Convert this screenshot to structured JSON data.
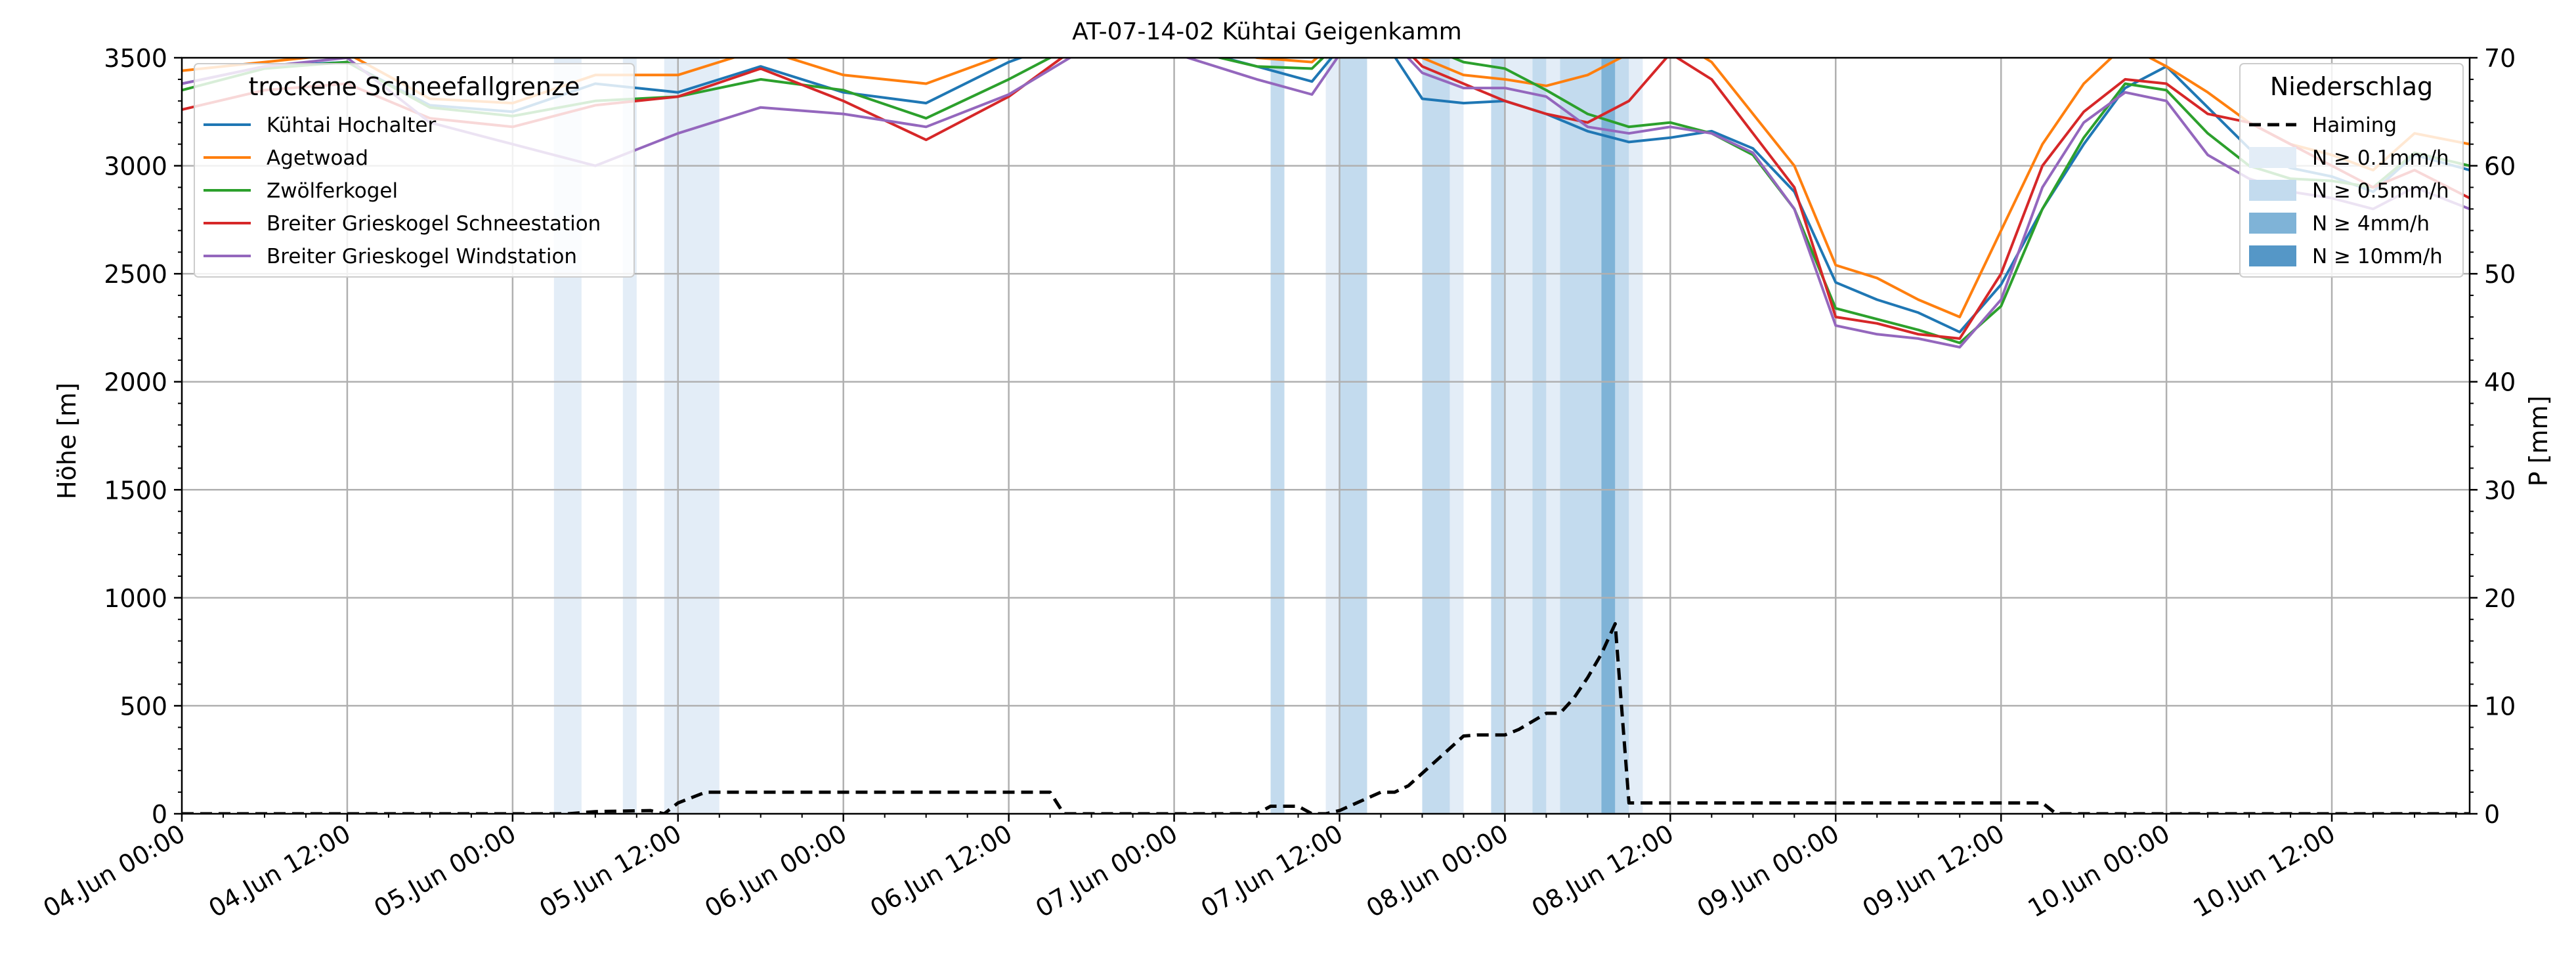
{
  "chart_data": {
    "type": "line",
    "title": "AT-07-14-02 Kühtai Geigenkamm",
    "ylabel": "Höhe [m]",
    "y2label": "P [mm]",
    "xlim": [
      "04.Jun 00:00",
      "10.Jun 22:00"
    ],
    "ylim": [
      0,
      3500
    ],
    "y2lim": [
      0,
      70
    ],
    "grid": true,
    "x_ticks": [
      "04.Jun 00:00",
      "04.Jun 12:00",
      "05.Jun 00:00",
      "05.Jun 12:00",
      "06.Jun 00:00",
      "06.Jun 12:00",
      "07.Jun 00:00",
      "07.Jun 12:00",
      "08.Jun 00:00",
      "08.Jun 12:00",
      "09.Jun 00:00",
      "09.Jun 12:00",
      "10.Jun 00:00",
      "10.Jun 12:00"
    ],
    "y_ticks": [
      0,
      500,
      1000,
      1500,
      2000,
      2500,
      3000,
      3500
    ],
    "y2_ticks": [
      0,
      10,
      20,
      30,
      40,
      50,
      60,
      70
    ],
    "legend_left": {
      "title": "trockene Schneefallgrenze",
      "position": "upper-left",
      "entries": [
        "Kühtai Hochalter",
        "Agetwoad",
        "Zwölferkogel",
        "Breiter Grieskogel Schneestation",
        "Breiter Grieskogel Windstation"
      ]
    },
    "legend_right": {
      "title": "Niederschlag",
      "position": "upper-right",
      "entries": [
        "Haiming",
        "N ≥ 0.1mm/h",
        "N ≥ 0.5mm/h",
        "N ≥ 4mm/h",
        "N ≥ 10mm/h"
      ]
    },
    "colors": {
      "series": [
        "#1f77b4",
        "#ff7f0e",
        "#2ca02c",
        "#d62728",
        "#9467bd"
      ],
      "band_light": "#e3edf7",
      "band_medium": "#c3dbee",
      "band_strong": "#7fb3d7",
      "band_strongest": "#5597c7",
      "precip": "#000000",
      "grid": "#b0b0b0"
    },
    "series": [
      {
        "name": "Kühtai Hochalter",
        "x": [
          "04.Jun 00:00",
          "04.Jun 06:00",
          "04.Jun 12:00",
          "04.Jun 18:00",
          "05.Jun 00:00",
          "05.Jun 06:00",
          "05.Jun 12:00",
          "05.Jun 18:00",
          "06.Jun 00:00",
          "06.Jun 06:00",
          "06.Jun 12:00",
          "06.Jun 18:00",
          "07.Jun 00:00",
          "07.Jun 06:00",
          "07.Jun 10:00",
          "07.Jun 14:00",
          "07.Jun 18:00",
          "07.Jun 21:00",
          "08.Jun 00:00",
          "08.Jun 03:00",
          "08.Jun 06:00",
          "08.Jun 09:00",
          "08.Jun 12:00",
          "08.Jun 15:00",
          "08.Jun 18:00",
          "08.Jun 21:00",
          "09.Jun 00:00",
          "09.Jun 03:00",
          "09.Jun 06:00",
          "09.Jun 09:00",
          "09.Jun 12:00",
          "09.Jun 15:00",
          "09.Jun 18:00",
          "09.Jun 21:00",
          "10.Jun 00:00",
          "10.Jun 03:00",
          "10.Jun 06:00",
          "10.Jun 09:00",
          "10.Jun 12:00",
          "10.Jun 15:00",
          "10.Jun 18:00",
          "10.Jun 22:00"
        ],
        "y": [
          3380,
          3460,
          3480,
          3280,
          3250,
          3380,
          3340,
          3460,
          3340,
          3290,
          3480,
          3620,
          3560,
          3460,
          3390,
          3700,
          3310,
          3290,
          3300,
          3240,
          3160,
          3110,
          3130,
          3160,
          3080,
          2880,
          2460,
          2380,
          2320,
          2230,
          2450,
          2800,
          3100,
          3360,
          3460,
          3270,
          3080,
          2990,
          2950,
          2880,
          3050,
          2980
        ]
      },
      {
        "name": "Agetwoad",
        "x": [
          "04.Jun 00:00",
          "04.Jun 06:00",
          "04.Jun 12:00",
          "04.Jun 18:00",
          "05.Jun 00:00",
          "05.Jun 06:00",
          "05.Jun 12:00",
          "05.Jun 18:00",
          "06.Jun 00:00",
          "06.Jun 06:00",
          "06.Jun 12:00",
          "06.Jun 18:00",
          "07.Jun 00:00",
          "07.Jun 06:00",
          "07.Jun 10:00",
          "07.Jun 14:00",
          "07.Jun 18:00",
          "07.Jun 21:00",
          "08.Jun 00:00",
          "08.Jun 03:00",
          "08.Jun 06:00",
          "08.Jun 09:00",
          "08.Jun 12:00",
          "08.Jun 15:00",
          "08.Jun 18:00",
          "08.Jun 21:00",
          "09.Jun 00:00",
          "09.Jun 03:00",
          "09.Jun 06:00",
          "09.Jun 09:00",
          "09.Jun 12:00",
          "09.Jun 15:00",
          "09.Jun 18:00",
          "09.Jun 21:00",
          "10.Jun 00:00",
          "10.Jun 03:00",
          "10.Jun 06:00",
          "10.Jun 09:00",
          "10.Jun 12:00",
          "10.Jun 15:00",
          "10.Jun 18:00",
          "10.Jun 22:00"
        ],
        "y": [
          3440,
          3480,
          3520,
          3310,
          3290,
          3420,
          3420,
          3540,
          3420,
          3380,
          3520,
          3650,
          3600,
          3500,
          3480,
          3700,
          3500,
          3420,
          3400,
          3370,
          3420,
          3520,
          3600,
          3480,
          3240,
          3000,
          2540,
          2480,
          2380,
          2300,
          2700,
          3100,
          3380,
          3560,
          3460,
          3340,
          3200,
          3100,
          3050,
          2980,
          3150,
          3100
        ]
      },
      {
        "name": "Zwölferkogel",
        "x": [
          "04.Jun 00:00",
          "04.Jun 06:00",
          "04.Jun 12:00",
          "04.Jun 18:00",
          "05.Jun 00:00",
          "05.Jun 06:00",
          "05.Jun 12:00",
          "05.Jun 18:00",
          "06.Jun 00:00",
          "06.Jun 06:00",
          "06.Jun 12:00",
          "06.Jun 18:00",
          "07.Jun 00:00",
          "07.Jun 06:00",
          "07.Jun 10:00",
          "07.Jun 14:00",
          "07.Jun 18:00",
          "07.Jun 21:00",
          "08.Jun 00:00",
          "08.Jun 03:00",
          "08.Jun 06:00",
          "08.Jun 09:00",
          "08.Jun 12:00",
          "08.Jun 15:00",
          "08.Jun 18:00",
          "08.Jun 21:00",
          "09.Jun 00:00",
          "09.Jun 03:00",
          "09.Jun 06:00",
          "09.Jun 09:00",
          "09.Jun 12:00",
          "09.Jun 15:00",
          "09.Jun 18:00",
          "09.Jun 21:00",
          "10.Jun 00:00",
          "10.Jun 03:00",
          "10.Jun 06:00",
          "10.Jun 09:00",
          "10.Jun 12:00",
          "10.Jun 15:00",
          "10.Jun 18:00",
          "10.Jun 22:00"
        ],
        "y": [
          3350,
          3450,
          3480,
          3270,
          3230,
          3300,
          3320,
          3400,
          3350,
          3220,
          3400,
          3600,
          3550,
          3460,
          3450,
          3700,
          3560,
          3480,
          3450,
          3350,
          3240,
          3180,
          3200,
          3150,
          3050,
          2800,
          2340,
          2290,
          2240,
          2180,
          2350,
          2800,
          3130,
          3380,
          3350,
          3150,
          3000,
          2940,
          2930,
          2900,
          3060,
          3000
        ]
      },
      {
        "name": "Breiter Grieskogel Schneestation",
        "x": [
          "04.Jun 00:00",
          "04.Jun 06:00",
          "04.Jun 12:00",
          "04.Jun 18:00",
          "05.Jun 00:00",
          "05.Jun 06:00",
          "05.Jun 12:00",
          "05.Jun 18:00",
          "06.Jun 00:00",
          "06.Jun 06:00",
          "06.Jun 12:00",
          "06.Jun 18:00",
          "07.Jun 00:00",
          "07.Jun 06:00",
          "07.Jun 10:00",
          "07.Jun 14:00",
          "07.Jun 18:00",
          "07.Jun 21:00",
          "08.Jun 00:00",
          "08.Jun 03:00",
          "08.Jun 06:00",
          "08.Jun 09:00",
          "08.Jun 12:00",
          "08.Jun 15:00",
          "08.Jun 18:00",
          "08.Jun 21:00",
          "09.Jun 00:00",
          "09.Jun 03:00",
          "09.Jun 06:00",
          "09.Jun 09:00",
          "09.Jun 12:00",
          "09.Jun 15:00",
          "09.Jun 18:00",
          "09.Jun 21:00",
          "10.Jun 00:00",
          "10.Jun 03:00",
          "10.Jun 06:00",
          "10.Jun 09:00",
          "10.Jun 12:00",
          "10.Jun 15:00",
          "10.Jun 18:00",
          "10.Jun 22:00"
        ],
        "y": [
          3260,
          3350,
          3380,
          3220,
          3180,
          3280,
          3320,
          3450,
          3300,
          3120,
          3320,
          3600,
          3560,
          3520,
          3520,
          3720,
          3460,
          3380,
          3300,
          3240,
          3200,
          3300,
          3520,
          3400,
          3150,
          2900,
          2300,
          2270,
          2220,
          2200,
          2500,
          3000,
          3250,
          3400,
          3380,
          3240,
          3200,
          3100,
          3000,
          2900,
          2980,
          2850
        ]
      },
      {
        "name": "Breiter Grieskogel Windstation",
        "x": [
          "04.Jun 00:00",
          "04.Jun 06:00",
          "04.Jun 12:00",
          "04.Jun 18:00",
          "05.Jun 00:00",
          "05.Jun 06:00",
          "05.Jun 12:00",
          "05.Jun 18:00",
          "06.Jun 00:00",
          "06.Jun 06:00",
          "06.Jun 12:00",
          "06.Jun 18:00",
          "07.Jun 00:00",
          "07.Jun 06:00",
          "07.Jun 10:00",
          "07.Jun 14:00",
          "07.Jun 18:00",
          "07.Jun 21:00",
          "08.Jun 00:00",
          "08.Jun 03:00",
          "08.Jun 06:00",
          "08.Jun 09:00",
          "08.Jun 12:00",
          "08.Jun 15:00",
          "08.Jun 18:00",
          "08.Jun 21:00",
          "09.Jun 00:00",
          "09.Jun 03:00",
          "09.Jun 06:00",
          "09.Jun 09:00",
          "09.Jun 12:00",
          "09.Jun 15:00",
          "09.Jun 18:00",
          "09.Jun 21:00",
          "10.Jun 00:00",
          "10.Jun 03:00",
          "10.Jun 06:00",
          "10.Jun 09:00",
          "10.Jun 12:00",
          "10.Jun 15:00",
          "10.Jun 18:00",
          "10.Jun 22:00"
        ],
        "y": [
          3380,
          3460,
          3500,
          3200,
          3100,
          3000,
          3150,
          3270,
          3240,
          3180,
          3330,
          3560,
          3520,
          3400,
          3330,
          3700,
          3430,
          3360,
          3360,
          3320,
          3180,
          3150,
          3180,
          3150,
          3060,
          2800,
          2260,
          2220,
          2200,
          2160,
          2380,
          2900,
          3200,
          3340,
          3300,
          3050,
          2940,
          2880,
          2850,
          2800,
          2900,
          2800
        ]
      }
    ],
    "precipitation": {
      "name": "Haiming",
      "unit": "mm",
      "x": [
        "04.Jun 00:00",
        "05.Jun 04:00",
        "05.Jun 06:00",
        "05.Jun 10:00",
        "05.Jun 11:00",
        "05.Jun 12:00",
        "05.Jun 14:00",
        "06.Jun 15:00",
        "06.Jun 16:00",
        "07.Jun 06:00",
        "07.Jun 07:00",
        "07.Jun 09:00",
        "07.Jun 10:00",
        "07.Jun 11:00",
        "07.Jun 12:00",
        "07.Jun 15:00",
        "07.Jun 16:00",
        "07.Jun 17:00",
        "07.Jun 21:00",
        "07.Jun 22:00",
        "08.Jun 00:00",
        "08.Jun 01:00",
        "08.Jun 03:00",
        "08.Jun 04:00",
        "08.Jun 05:00",
        "08.Jun 06:00",
        "08.Jun 07:00",
        "08.Jun 08:00",
        "08.Jun 09:00",
        "09.Jun 15:00",
        "09.Jun 16:00",
        "10.Jun 22:00"
      ],
      "y": [
        0,
        0,
        0.2,
        0.3,
        0,
        1,
        2,
        2,
        0,
        0,
        0.7,
        0.7,
        0,
        0,
        0.3,
        2,
        2,
        2.6,
        7.2,
        7.3,
        7.3,
        7.8,
        9.3,
        9.3,
        10.7,
        12.6,
        14.8,
        17.6,
        1,
        1,
        0,
        0
      ]
    },
    "precip_bands": [
      {
        "start": "05.Jun 03:00",
        "end": "05.Jun 05:00",
        "level": "N ≥ 0.1mm/h"
      },
      {
        "start": "05.Jun 08:00",
        "end": "05.Jun 09:00",
        "level": "N ≥ 0.1mm/h"
      },
      {
        "start": "05.Jun 11:00",
        "end": "05.Jun 15:00",
        "level": "N ≥ 0.1mm/h"
      },
      {
        "start": "07.Jun 07:00",
        "end": "07.Jun 08:00",
        "level": "N ≥ 0.5mm/h"
      },
      {
        "start": "07.Jun 11:00",
        "end": "07.Jun 12:00",
        "level": "N ≥ 0.1mm/h"
      },
      {
        "start": "07.Jun 12:00",
        "end": "07.Jun 14:00",
        "level": "N ≥ 0.5mm/h"
      },
      {
        "start": "07.Jun 18:00",
        "end": "07.Jun 20:00",
        "level": "N ≥ 0.5mm/h"
      },
      {
        "start": "07.Jun 20:00",
        "end": "07.Jun 21:00",
        "level": "N ≥ 0.1mm/h"
      },
      {
        "start": "07.Jun 23:00",
        "end": "08.Jun 00:00",
        "level": "N ≥ 0.5mm/h"
      },
      {
        "start": "08.Jun 00:00",
        "end": "08.Jun 02:00",
        "level": "N ≥ 0.1mm/h"
      },
      {
        "start": "08.Jun 02:00",
        "end": "08.Jun 03:00",
        "level": "N ≥ 0.5mm/h"
      },
      {
        "start": "08.Jun 03:00",
        "end": "08.Jun 04:00",
        "level": "N ≥ 0.1mm/h"
      },
      {
        "start": "08.Jun 04:00",
        "end": "08.Jun 07:00",
        "level": "N ≥ 0.5mm/h"
      },
      {
        "start": "08.Jun 07:00",
        "end": "08.Jun 08:00",
        "level": "N ≥ 4mm/h"
      },
      {
        "start": "08.Jun 08:00",
        "end": "08.Jun 09:00",
        "level": "N ≥ 0.5mm/h"
      },
      {
        "start": "08.Jun 09:00",
        "end": "08.Jun 10:00",
        "level": "N ≥ 0.1mm/h"
      }
    ]
  }
}
